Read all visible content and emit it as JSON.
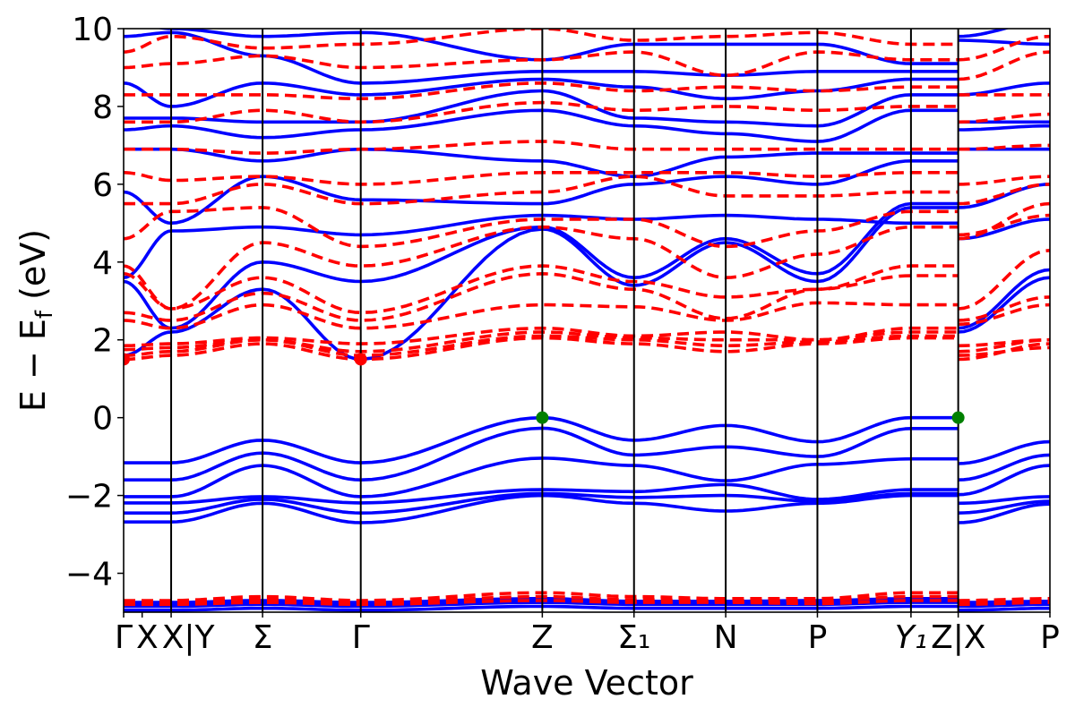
{
  "chart_data": {
    "type": "line",
    "title": "",
    "xlabel": "Wave Vector",
    "ylabel": "E − E",
    "ylabel_sub": "f",
    "ylabel_unit": " (eV)",
    "ylim": [
      -5,
      10
    ],
    "xlim": [
      0,
      1
    ],
    "yticks": [
      -4,
      -2,
      0,
      2,
      4,
      6,
      8,
      10
    ],
    "ytick_labels": [
      "−4",
      "−2",
      "0",
      "2",
      "4",
      "6",
      "8",
      "10"
    ],
    "grid": false,
    "legend": "none",
    "colors": {
      "spin_up": "#0000ff",
      "spin_down": "#ff0000",
      "vbm": "#008000",
      "cbm": "#ff0000"
    },
    "kpoints": [
      {
        "pos": 0,
        "label": "Γ",
        "line": false
      },
      {
        "pos": 0.02,
        "label": "X",
        "line": false
      },
      {
        "pos": 0.0513,
        "label": "X|Y",
        "line": true
      },
      {
        "pos": 0.15,
        "label": "Σ",
        "line": true
      },
      {
        "pos": 0.256,
        "label": "Γ",
        "line": true
      },
      {
        "pos": 0.452,
        "label": "Z",
        "line": true
      },
      {
        "pos": 0.551,
        "label": "Σ₁",
        "line": true
      },
      {
        "pos": 0.65,
        "label": "N",
        "line": true
      },
      {
        "pos": 0.749,
        "label": "P",
        "line": true
      },
      {
        "pos": 0.85,
        "label": "Y₁",
        "line": true
      },
      {
        "pos": 0.901,
        "label": "Z|X",
        "line": true
      },
      {
        "pos": 1.0,
        "label": "P",
        "line": false
      }
    ],
    "band_nodes": [
      0,
      0.0513,
      0.15,
      0.256,
      0.452,
      0.551,
      0.65,
      0.749,
      0.85,
      0.901,
      0.901,
      1.0
    ],
    "series": [
      {
        "spin": "up",
        "values": [
          -4.95,
          -4.95,
          -4.9,
          -4.95,
          -4.85,
          -4.9,
          -4.9,
          -4.9,
          -4.85,
          -4.85,
          -4.95,
          -4.9
        ]
      },
      {
        "spin": "up",
        "values": [
          -4.85,
          -4.85,
          -4.8,
          -4.85,
          -4.75,
          -4.8,
          -4.8,
          -4.8,
          -4.75,
          -4.75,
          -4.85,
          -4.8
        ]
      },
      {
        "spin": "up",
        "values": [
          -4.8,
          -4.8,
          -4.75,
          -4.8,
          -4.7,
          -4.75,
          -4.78,
          -4.75,
          -4.7,
          -4.7,
          -4.8,
          -4.75
        ]
      },
      {
        "spin": "up",
        "values": [
          -4.75,
          -4.75,
          -4.7,
          -4.75,
          -4.65,
          -4.72,
          -4.72,
          -4.7,
          -4.65,
          -4.65,
          -4.75,
          -4.72
        ]
      },
      {
        "spin": "up",
        "values": [
          -2.68,
          -2.68,
          -2.2,
          -2.7,
          -2.0,
          -2.2,
          -2.4,
          -2.2,
          -2.0,
          -2.0,
          -2.7,
          -2.22
        ]
      },
      {
        "spin": "up",
        "values": [
          -2.45,
          -2.45,
          -2.1,
          -2.45,
          -1.95,
          -2.05,
          -2.0,
          -2.15,
          -1.95,
          -1.95,
          -2.45,
          -2.15
        ]
      },
      {
        "spin": "up",
        "values": [
          -2.19,
          -2.19,
          -2.03,
          -2.19,
          -1.85,
          -1.9,
          -1.72,
          -2.1,
          -1.85,
          -1.85,
          -2.2,
          -2.03
        ]
      },
      {
        "spin": "up",
        "values": [
          -2.03,
          -2.03,
          -1.23,
          -2.03,
          -1.04,
          -1.23,
          -1.62,
          -1.2,
          -1.06,
          -1.06,
          -1.98,
          -1.23
        ]
      },
      {
        "spin": "up",
        "values": [
          -1.6,
          -1.6,
          -0.91,
          -1.6,
          -0.27,
          -0.96,
          -0.75,
          -1.0,
          -0.28,
          -0.28,
          -1.6,
          -0.96
        ]
      },
      {
        "spin": "up",
        "values": [
          -1.16,
          -1.16,
          -0.58,
          -1.16,
          0.0,
          -0.58,
          -0.2,
          -0.62,
          0.0,
          0.0,
          -1.18,
          -0.62
        ]
      },
      {
        "spin": "up",
        "values": [
          1.6,
          2.2,
          3.3,
          1.5,
          4.85,
          3.4,
          4.5,
          3.5,
          5.4,
          5.4,
          2.2,
          3.6
        ]
      },
      {
        "spin": "up",
        "values": [
          3.5,
          2.3,
          4.0,
          3.5,
          4.9,
          3.6,
          4.6,
          3.7,
          5.5,
          5.5,
          2.3,
          3.8
        ]
      },
      {
        "spin": "up",
        "values": [
          3.6,
          4.8,
          4.9,
          4.7,
          5.2,
          5.1,
          5.2,
          5.1,
          5.0,
          5.0,
          4.6,
          5.1
        ]
      },
      {
        "spin": "up",
        "values": [
          5.8,
          5.0,
          6.2,
          5.6,
          5.5,
          6.0,
          6.2,
          6.0,
          6.6,
          6.6,
          5.4,
          6.0
        ]
      },
      {
        "spin": "up",
        "values": [
          6.9,
          6.9,
          6.6,
          6.9,
          6.6,
          6.2,
          6.7,
          6.8,
          6.8,
          6.8,
          6.9,
          6.9
        ]
      },
      {
        "spin": "up",
        "values": [
          7.4,
          7.5,
          7.2,
          7.4,
          7.9,
          7.5,
          7.3,
          7.1,
          7.9,
          7.9,
          7.4,
          7.5
        ]
      },
      {
        "spin": "up",
        "values": [
          7.7,
          7.7,
          7.6,
          7.6,
          8.4,
          7.7,
          7.6,
          7.5,
          8.3,
          8.3,
          7.6,
          7.6
        ]
      },
      {
        "spin": "up",
        "values": [
          8.6,
          8.0,
          8.6,
          8.3,
          8.7,
          8.5,
          8.2,
          8.4,
          8.7,
          8.7,
          8.3,
          8.6
        ]
      },
      {
        "spin": "up",
        "values": [
          9.8,
          9.9,
          9.3,
          8.6,
          8.9,
          8.9,
          8.8,
          8.9,
          8.9,
          8.9,
          9.7,
          9.6
        ]
      },
      {
        "spin": "up",
        "values": [
          10.2,
          10.0,
          9.8,
          9.9,
          9.2,
          9.6,
          9.6,
          9.6,
          9.1,
          9.1,
          9.8,
          10.2
        ]
      },
      {
        "spin": "down",
        "values": [
          -4.7,
          -4.7,
          -4.6,
          -4.7,
          -4.5,
          -4.6,
          -4.65,
          -4.65,
          -4.5,
          -4.5,
          -4.7,
          -4.65
        ]
      },
      {
        "spin": "down",
        "values": [
          -4.75,
          -4.75,
          -4.68,
          -4.75,
          -4.6,
          -4.68,
          -4.7,
          -4.7,
          -4.6,
          -4.6,
          -4.75,
          -4.7
        ]
      },
      {
        "spin": "down",
        "values": [
          -4.8,
          -4.8,
          -4.75,
          -4.8,
          -4.7,
          -4.75,
          -4.75,
          -4.78,
          -4.7,
          -4.7,
          -4.8,
          -4.75
        ]
      },
      {
        "spin": "down",
        "values": [
          1.5,
          1.6,
          1.9,
          1.5,
          2.05,
          1.9,
          1.7,
          1.9,
          2.05,
          2.05,
          1.5,
          1.9
        ]
      },
      {
        "spin": "down",
        "values": [
          1.6,
          1.7,
          2.0,
          1.6,
          2.1,
          2.0,
          1.85,
          1.95,
          2.1,
          2.1,
          1.6,
          1.8
        ]
      },
      {
        "spin": "down",
        "values": [
          1.75,
          1.8,
          2.0,
          1.7,
          2.2,
          2.05,
          2.0,
          2.0,
          2.2,
          2.2,
          1.7,
          2.0
        ]
      },
      {
        "spin": "down",
        "values": [
          1.85,
          1.9,
          2.05,
          1.9,
          2.3,
          2.1,
          2.2,
          2.0,
          2.3,
          2.3,
          1.85,
          2.0
        ]
      },
      {
        "spin": "down",
        "values": [
          2.5,
          2.3,
          2.9,
          2.3,
          2.9,
          2.85,
          2.5,
          2.95,
          2.9,
          2.9,
          2.4,
          2.9
        ]
      },
      {
        "spin": "down",
        "values": [
          2.7,
          2.5,
          3.2,
          2.5,
          3.7,
          3.3,
          2.55,
          3.3,
          3.65,
          3.65,
          2.5,
          3.1
        ]
      },
      {
        "spin": "down",
        "values": [
          3.7,
          2.8,
          3.6,
          2.7,
          3.9,
          3.5,
          3.1,
          3.3,
          3.9,
          3.9,
          2.8,
          4.3
        ]
      },
      {
        "spin": "down",
        "values": [
          3.9,
          2.8,
          4.5,
          3.9,
          4.9,
          4.6,
          3.6,
          4.2,
          4.9,
          4.9,
          4.6,
          5.5
        ]
      },
      {
        "spin": "down",
        "values": [
          4.6,
          5.3,
          5.4,
          4.4,
          5.1,
          5.1,
          4.4,
          4.8,
          5.3,
          5.3,
          4.7,
          5.2
        ]
      },
      {
        "spin": "down",
        "values": [
          5.5,
          5.5,
          6.0,
          5.5,
          5.8,
          6.2,
          5.7,
          5.7,
          5.8,
          5.8,
          5.5,
          6.0
        ]
      },
      {
        "spin": "down",
        "values": [
          6.3,
          6.1,
          6.2,
          6.0,
          6.3,
          6.3,
          6.3,
          6.2,
          6.3,
          6.3,
          6.0,
          6.2
        ]
      },
      {
        "spin": "down",
        "values": [
          6.9,
          6.9,
          6.8,
          6.9,
          7.1,
          6.9,
          6.9,
          6.9,
          6.9,
          6.9,
          6.9,
          7.0
        ]
      },
      {
        "spin": "down",
        "values": [
          7.6,
          7.6,
          7.9,
          7.6,
          8.1,
          7.9,
          8.0,
          7.9,
          8.0,
          8.0,
          7.6,
          7.8
        ]
      },
      {
        "spin": "down",
        "values": [
          8.3,
          8.3,
          8.3,
          8.2,
          8.6,
          8.4,
          8.5,
          8.4,
          8.5,
          8.5,
          8.3,
          8.3
        ]
      },
      {
        "spin": "down",
        "values": [
          9.0,
          9.1,
          9.3,
          9.0,
          9.2,
          9.4,
          8.8,
          9.4,
          9.2,
          9.2,
          8.7,
          9.4
        ]
      },
      {
        "spin": "down",
        "values": [
          9.4,
          9.8,
          9.5,
          9.6,
          10.0,
          9.7,
          9.8,
          9.9,
          9.6,
          9.6,
          9.2,
          9.8
        ]
      }
    ],
    "markers": [
      {
        "type": "cbm",
        "x": 0,
        "y": 1.5
      },
      {
        "type": "cbm",
        "x": 0.256,
        "y": 1.5
      },
      {
        "type": "vbm",
        "x": 0.452,
        "y": 0.0
      },
      {
        "type": "vbm",
        "x": 0.901,
        "y": 0.0
      }
    ]
  }
}
